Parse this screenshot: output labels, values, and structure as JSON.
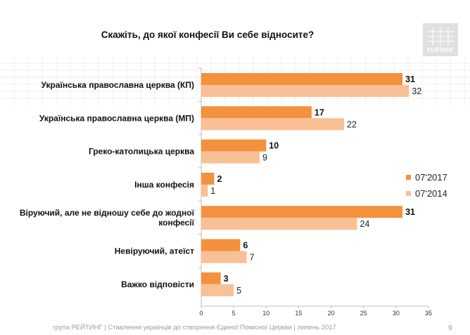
{
  "title": "Скажіть, до якої конфесії Ви себе відносите?",
  "logo": {
    "text": "РЕЙТИНГ"
  },
  "footer": "група РЕЙТИНГ  |  Ставлення українців до створення Єдиної Помісної Церкви  |  липень 2017",
  "page_number": "9",
  "colors": {
    "series_2017": "#f4913d",
    "series_2014": "#f9c096",
    "pattern": "#ececec"
  },
  "chart_data": {
    "type": "bar",
    "orientation": "horizontal",
    "title": "Скажіть, до якої конфесії Ви себе відносите?",
    "categories": [
      "Українська православна церква (КП)",
      "Українська православна церква (МП)",
      "Греко-католицька церква",
      "Інша конфесія",
      [
        "Віруючий, але не відношу себе до жодної",
        "конфесії"
      ],
      "Невіруючий, атеїст",
      "Важко відповісти"
    ],
    "series": [
      {
        "name": "07'2017",
        "values": [
          31,
          17,
          10,
          2,
          31,
          6,
          3
        ]
      },
      {
        "name": "07'2014",
        "values": [
          32,
          22,
          9,
          1,
          24,
          7,
          5
        ]
      }
    ],
    "xlim": [
      0,
      35
    ],
    "xticks": [
      0,
      5,
      10,
      15,
      20,
      25,
      30,
      35
    ],
    "grid": false,
    "legend_position": "right"
  }
}
